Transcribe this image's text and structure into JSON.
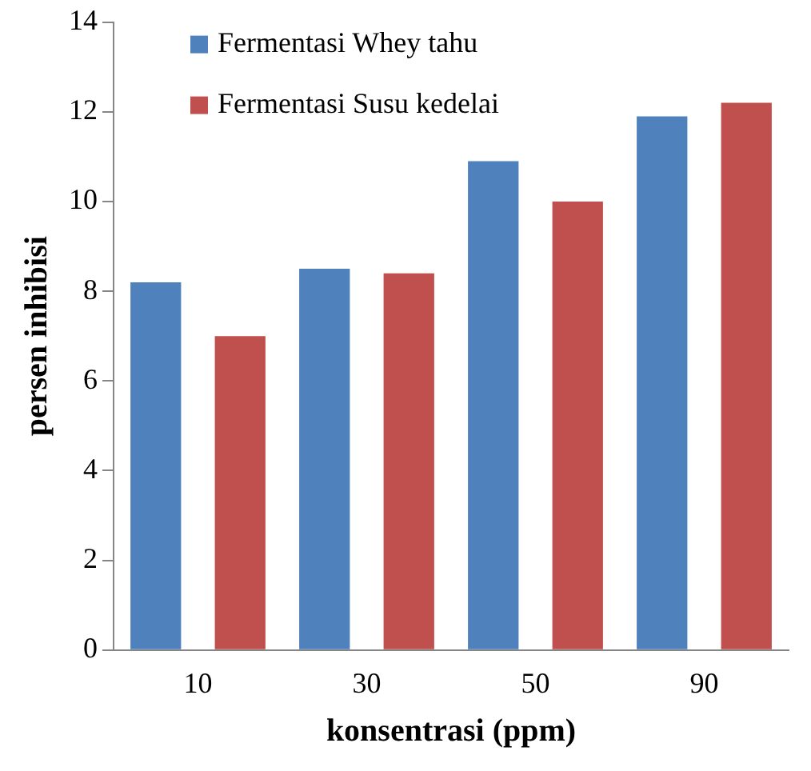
{
  "chart_data": {
    "type": "bar",
    "xlabel": "konsentrasi (ppm)",
    "ylabel": "persen inhibisi",
    "categories": [
      "10",
      "30",
      "50",
      "90"
    ],
    "series": [
      {
        "name": "Fermentasi Whey tahu",
        "color": "#4f81bd",
        "values": [
          8.2,
          8.5,
          10.9,
          11.9
        ]
      },
      {
        "name": "Fermentasi Susu kedelai",
        "color": "#c0504d",
        "values": [
          7.0,
          8.4,
          10.0,
          12.2
        ]
      }
    ],
    "ylim": [
      0,
      14
    ],
    "yticks": [
      0,
      2,
      4,
      6,
      8,
      10,
      12,
      14
    ],
    "grid": false,
    "legend": "top left"
  }
}
